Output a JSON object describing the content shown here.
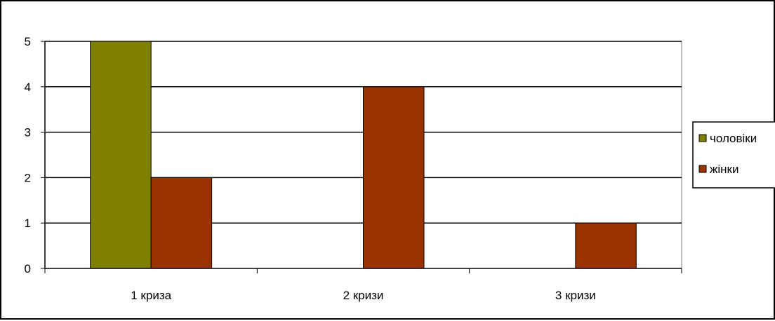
{
  "chart_data": {
    "type": "bar",
    "categories": [
      "1 криза",
      "2 кризи",
      "3 кризи"
    ],
    "series": [
      {
        "name": "чоловіки",
        "values": [
          5,
          0,
          0
        ],
        "color": "#808000"
      },
      {
        "name": "жінки",
        "values": [
          2,
          4,
          1
        ],
        "color": "#993300"
      }
    ],
    "ylim": [
      0,
      5
    ],
    "yticks": [
      "0",
      "1",
      "2",
      "3",
      "4",
      "5"
    ],
    "grid": true,
    "legend_position": "right"
  }
}
